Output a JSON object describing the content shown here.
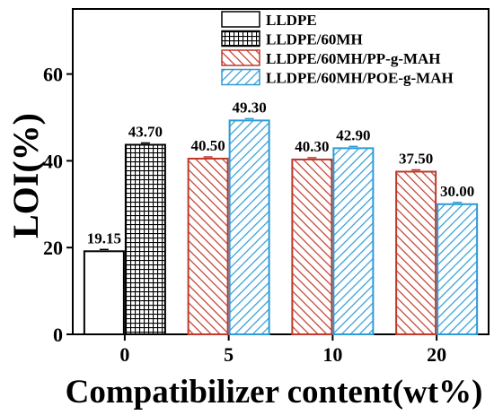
{
  "chart_data": {
    "type": "bar",
    "title": "",
    "xlabel": "Compatibilizer content(wt%)",
    "ylabel": "LOI(%)",
    "ylim": [
      0,
      75
    ],
    "y_ticks": [
      "0",
      "20",
      "40",
      "60"
    ],
    "grid": false,
    "legend_position": "top-right",
    "categories": [
      "0",
      "5",
      "10",
      "20"
    ],
    "series": [
      {
        "name": "LLDPE",
        "pattern": "none",
        "color": "#000000",
        "points": [
          {
            "category": "0",
            "value": 19.15,
            "label": "19.15"
          }
        ]
      },
      {
        "name": "LLDPE/60MH",
        "pattern": "grid",
        "color": "#000000",
        "points": [
          {
            "category": "0",
            "value": 43.7,
            "label": "43.70"
          }
        ]
      },
      {
        "name": "LLDPE/60MH/PP-g-MAH",
        "pattern": "diagonal",
        "color": "#c0392b",
        "points": [
          {
            "category": "5",
            "value": 40.5,
            "label": "40.50"
          },
          {
            "category": "10",
            "value": 40.3,
            "label": "40.30"
          },
          {
            "category": "20",
            "value": 37.5,
            "label": "37.50"
          }
        ]
      },
      {
        "name": "LLDPE/60MH/POE-g-MAH",
        "pattern": "diagonal",
        "color": "#2e9bd6",
        "points": [
          {
            "category": "5",
            "value": 49.3,
            "label": "49.30"
          },
          {
            "category": "10",
            "value": 42.9,
            "label": "42.90"
          },
          {
            "category": "20",
            "value": 30.0,
            "label": "30.00"
          }
        ]
      }
    ]
  }
}
